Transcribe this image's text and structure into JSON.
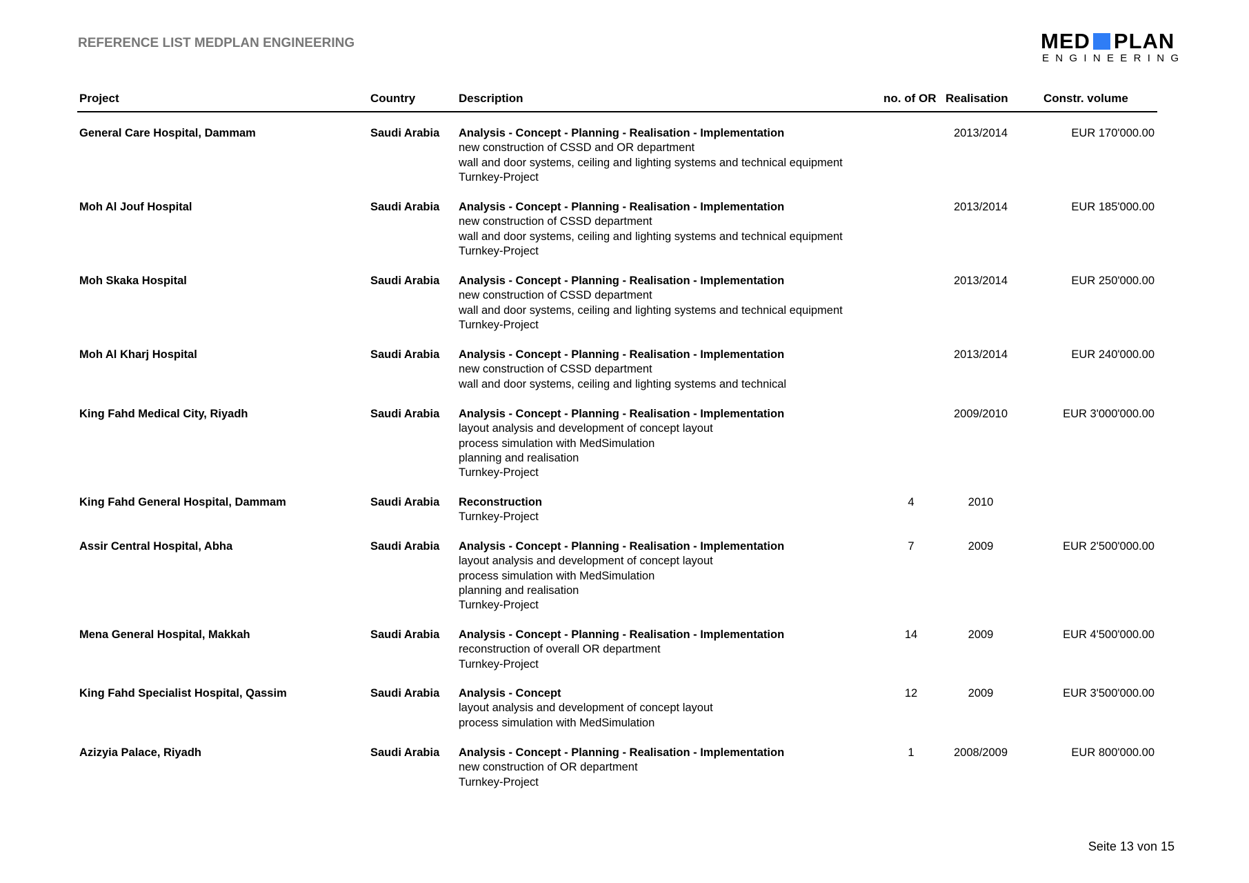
{
  "header": {
    "title": "REFERENCE LIST MEDPLAN ENGINEERING"
  },
  "logo": {
    "line1_left": "MED",
    "line1_right": "PLAN",
    "line2": "ENGINEERING",
    "accent_color": "#2f7df6"
  },
  "columns": {
    "project": "Project",
    "country": "Country",
    "description": "Description",
    "no_of_or": "no. of OR",
    "realisation": "Realisation",
    "volume": "Constr. volume"
  },
  "rows": [
    {
      "project": "General Care Hospital, Dammam",
      "country": "Saudi Arabia",
      "desc_title": "Analysis - Concept - Planning - Realisation - Implementation",
      "desc_lines": [
        "new construction of CSSD and OR department",
        "wall and door systems, ceiling  and lighting systems and technical equipment",
        "Turnkey-Project"
      ],
      "or": "",
      "realisation": "2013/2014",
      "volume": "EUR 170'000.00"
    },
    {
      "project": "Moh Al Jouf Hospital",
      "country": "Saudi Arabia",
      "desc_title": "Analysis - Concept - Planning - Realisation - Implementation",
      "desc_lines": [
        "new construction of CSSD department",
        "wall and door systems, ceiling  and lighting systems and technical equipment",
        "Turnkey-Project"
      ],
      "or": "",
      "realisation": "2013/2014",
      "volume": "EUR 185'000.00"
    },
    {
      "project": "Moh Skaka Hospital",
      "country": "Saudi Arabia",
      "desc_title": "Analysis - Concept - Planning - Realisation - Implementation",
      "desc_lines": [
        "new construction of CSSD department",
        "wall and door systems, ceiling  and lighting systems and technical equipment",
        "Turnkey-Project"
      ],
      "or": "",
      "realisation": "2013/2014",
      "volume": "EUR 250'000.00"
    },
    {
      "project": "Moh Al Kharj Hospital",
      "country": "Saudi Arabia",
      "desc_title": "Analysis - Concept - Planning - Realisation - Implementation",
      "desc_lines": [
        "new construction of CSSD department",
        "wall and door systems, ceiling  and lighting systems and technical"
      ],
      "or": "",
      "realisation": "2013/2014",
      "volume": "EUR 240'000.00"
    },
    {
      "project": "King Fahd Medical City, Riyadh",
      "country": "Saudi Arabia",
      "desc_title": "Analysis - Concept - Planning - Realisation - Implementation",
      "desc_lines": [
        "layout analysis and development of concept layout",
        "process simulation with MedSimulation",
        "planning and realisation",
        "Turnkey-Project"
      ],
      "or": "",
      "realisation": "2009/2010",
      "volume": "EUR 3'000'000.00"
    },
    {
      "project": "King Fahd General Hospital, Dammam",
      "country": "Saudi Arabia",
      "desc_title": "Reconstruction",
      "desc_lines": [
        "Turnkey-Project"
      ],
      "or": "4",
      "realisation": "2010",
      "volume": ""
    },
    {
      "project": "Assir Central Hospital, Abha",
      "country": "Saudi Arabia",
      "desc_title": "Analysis - Concept - Planning - Realisation - Implementation",
      "desc_lines": [
        "layout analysis and development of concept layout",
        "process simulation with MedSimulation",
        "planning and realisation",
        "Turnkey-Project"
      ],
      "or": "7",
      "realisation": "2009",
      "volume": "EUR 2'500'000.00"
    },
    {
      "project": "Mena General Hospital, Makkah",
      "country": "Saudi Arabia",
      "desc_title": "Analysis - Concept - Planning - Realisation - Implementation",
      "desc_lines": [
        "reconstruction of overall OR department",
        "Turnkey-Project"
      ],
      "or": "14",
      "realisation": "2009",
      "volume": "EUR 4'500'000.00"
    },
    {
      "project": "King Fahd Specialist Hospital, Qassim",
      "country": "Saudi Arabia",
      "desc_title": "Analysis - Concept",
      "desc_lines": [
        "layout analysis and development of concept layout",
        "process simulation with MedSimulation"
      ],
      "or": "12",
      "realisation": "2009",
      "volume": "EUR 3'500'000.00"
    },
    {
      "project": "Azizyia Palace, Riyadh",
      "country": "Saudi Arabia",
      "desc_title": "Analysis - Concept - Planning - Realisation - Implementation",
      "desc_lines": [
        "new construction of OR department",
        "Turnkey-Project"
      ],
      "or": "1",
      "realisation": "2008/2009",
      "volume": "EUR 800'000.00"
    }
  ],
  "footer": {
    "page": "Seite 13 von 15"
  }
}
